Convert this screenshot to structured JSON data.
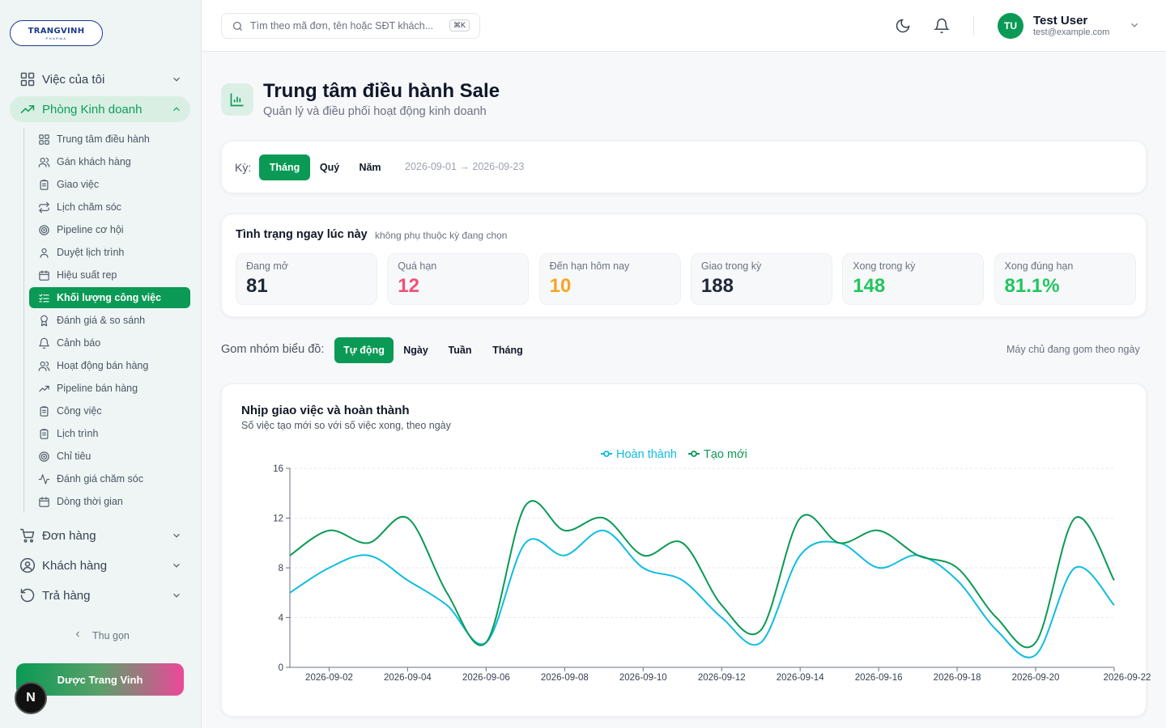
{
  "brand": {
    "logo_text_1": "TRANG",
    "logo_text_2": "VINH",
    "logo_sub": "PHARMA"
  },
  "sidebar": {
    "top": [
      {
        "label": "Việc của tôi",
        "icon": "grid-icon"
      },
      {
        "label": "Phòng Kinh doanh",
        "icon": "trending-up-icon",
        "active": true
      }
    ],
    "sub": [
      {
        "label": "Trung tâm điều hành",
        "icon": "grid-icon"
      },
      {
        "label": "Gán khách hàng",
        "icon": "users-icon"
      },
      {
        "label": "Giao việc",
        "icon": "clipboard-icon"
      },
      {
        "label": "Lịch chăm sóc",
        "icon": "repeat-icon"
      },
      {
        "label": "Pipeline cơ hội",
        "icon": "target-icon"
      },
      {
        "label": "Duyệt lịch trình",
        "icon": "user-check-icon"
      },
      {
        "label": "Hiệu suất rep",
        "icon": "calendar-icon"
      },
      {
        "label": "Khối lượng công việc",
        "icon": "list-check-icon",
        "active": true
      },
      {
        "label": "Đánh giá & so sánh",
        "icon": "award-icon"
      },
      {
        "label": "Cảnh báo",
        "icon": "bell-icon"
      },
      {
        "label": "Hoạt động bán hàng",
        "icon": "users-icon"
      },
      {
        "label": "Pipeline bán hàng",
        "icon": "trending-up-icon"
      },
      {
        "label": "Công việc",
        "icon": "clipboard-icon"
      },
      {
        "label": "Lịch trình",
        "icon": "clipboard-icon"
      },
      {
        "label": "Chỉ tiêu",
        "icon": "target-icon"
      },
      {
        "label": "Đánh giá chăm sóc",
        "icon": "activity-icon"
      },
      {
        "label": "Dòng thời gian",
        "icon": "calendar-icon"
      }
    ],
    "bottom": [
      {
        "label": "Đơn hàng",
        "icon": "cart-icon"
      },
      {
        "label": "Khách hàng",
        "icon": "user-circle-icon"
      },
      {
        "label": "Trả hàng",
        "icon": "rotate-icon"
      }
    ],
    "collapse_label": "Thu gọn",
    "company_button": "Dược Trang Vinh",
    "badge_letter": "N"
  },
  "topbar": {
    "search_placeholder": "Tìm theo mã đơn, tên hoặc SĐT khách...",
    "shortcut": "⌘K",
    "user_initials": "TU",
    "user_name": "Test User",
    "user_email": "test@example.com"
  },
  "page": {
    "title": "Trung tâm điều hành Sale",
    "subtitle": "Quản lý và điều phối hoạt động kinh doanh"
  },
  "period": {
    "label": "Kỳ:",
    "options": [
      "Tháng",
      "Quý",
      "Năm"
    ],
    "selected": "Tháng",
    "range": "2026-09-01 → 2026-09-23"
  },
  "status": {
    "title": "Tình trạng ngay lúc này",
    "note": "không phụ thuộc kỳ đang chọn",
    "kpis": [
      {
        "label": "Đang mở",
        "value": "81",
        "color": "#1f2937"
      },
      {
        "label": "Quá hạn",
        "value": "12",
        "color": "#f0507a"
      },
      {
        "label": "Đến hạn hôm nay",
        "value": "10",
        "color": "#f5a524"
      },
      {
        "label": "Giao trong kỳ",
        "value": "188",
        "color": "#1f2937"
      },
      {
        "label": "Xong trong kỳ",
        "value": "148",
        "color": "#22c55e"
      },
      {
        "label": "Xong đúng hạn",
        "value": "81.1%",
        "color": "#22c55e"
      }
    ]
  },
  "grouping": {
    "label": "Gom nhóm biểu đồ:",
    "options": [
      "Tự động",
      "Ngày",
      "Tuần",
      "Tháng"
    ],
    "selected": "Tự động",
    "note": "Máy chủ đang gom theo ngày"
  },
  "chart_data": {
    "type": "line",
    "title": "Nhịp giao việc và hoàn thành",
    "subtitle": "Số việc tạo mới so với số việc xong, theo ngày",
    "x": [
      "2026-09-01",
      "2026-09-02",
      "2026-09-03",
      "2026-09-04",
      "2026-09-05",
      "2026-09-06",
      "2026-09-07",
      "2026-09-08",
      "2026-09-09",
      "2026-09-10",
      "2026-09-11",
      "2026-09-12",
      "2026-09-13",
      "2026-09-14",
      "2026-09-15",
      "2026-09-16",
      "2026-09-17",
      "2026-09-18",
      "2026-09-19",
      "2026-09-20",
      "2026-09-21",
      "2026-09-22"
    ],
    "x_ticks": [
      "2026-09-02",
      "2026-09-04",
      "2026-09-06",
      "2026-09-08",
      "2026-09-10",
      "2026-09-12",
      "2026-09-14",
      "2026-09-16",
      "2026-09-18",
      "2026-09-20",
      "2026-09-22"
    ],
    "series": [
      {
        "name": "Hoàn thành",
        "color": "#0ebde0",
        "values": [
          6,
          8,
          9,
          7,
          5,
          2,
          10,
          9,
          11,
          8,
          7,
          4,
          2,
          9,
          10,
          8,
          9,
          7,
          3,
          1,
          8,
          5
        ]
      },
      {
        "name": "Tạo mới",
        "color": "#0a9a55",
        "values": [
          9,
          11,
          10,
          12,
          6,
          2,
          13,
          11,
          12,
          9,
          10,
          5,
          3,
          12,
          10,
          11,
          9,
          8,
          4,
          2,
          12,
          7
        ]
      }
    ],
    "ylim": [
      0,
      16
    ],
    "yticks": [
      0,
      4,
      8,
      12,
      16
    ],
    "grid": true,
    "legend": "top-center"
  }
}
